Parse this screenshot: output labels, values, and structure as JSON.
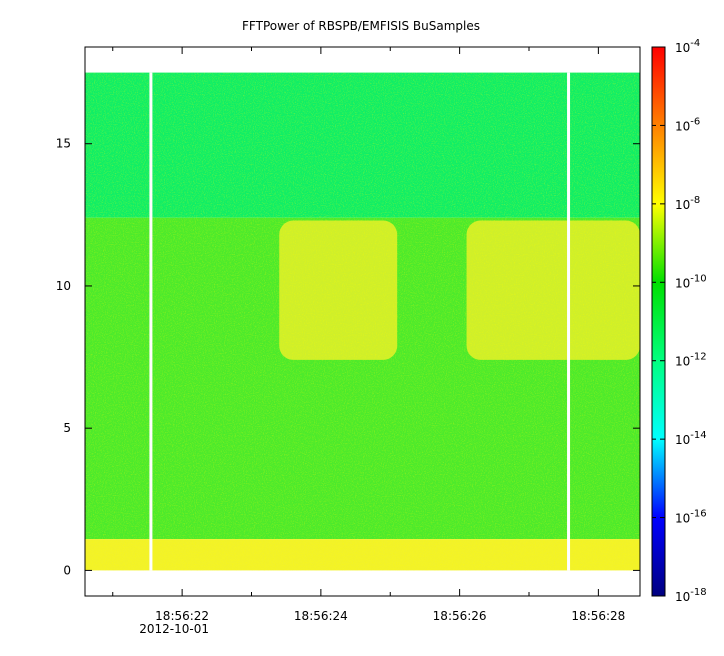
{
  "chart_data": {
    "type": "heatmap",
    "title": "FFTPower of RBSPB/EMFISIS  BuSamples",
    "xlabel": "",
    "ylabel": "",
    "x_ticks": [
      {
        "label": "18:56:22",
        "sublabel": "2012-10-01",
        "t": 22
      },
      {
        "label": "18:56:24",
        "t": 24
      },
      {
        "label": "18:56:26",
        "t": 26
      },
      {
        "label": "18:56:28",
        "t": 28
      }
    ],
    "x_minor_ticks": [
      21,
      23,
      25,
      27
    ],
    "xlim": [
      20.6,
      28.6
    ],
    "y_ticks": [
      0,
      5,
      10,
      15
    ],
    "ylim": [
      -0.9,
      18.4
    ],
    "data_ymax": 17.5,
    "gaps_t": [
      21.55,
      27.57
    ],
    "regions": [
      {
        "from": 12.4,
        "to": 17.5,
        "level": "low"
      },
      {
        "from": 1.1,
        "to": 12.4,
        "level": "mid"
      },
      {
        "from": 0.0,
        "to": 1.1,
        "level": "high"
      }
    ],
    "enhancements": [
      {
        "t_from": 23.4,
        "t_to": 25.1,
        "y_from": 7.4,
        "y_to": 12.3
      },
      {
        "t_from": 26.1,
        "t_to": 28.6,
        "y_from": 7.4,
        "y_to": 12.3
      }
    ],
    "colorbar": {
      "scale": "log",
      "range": [
        1e-18,
        0.0001
      ],
      "ticks": [
        {
          "base": "10",
          "exp": "-4"
        },
        {
          "base": "10",
          "exp": "-6"
        },
        {
          "base": "10",
          "exp": "-8"
        },
        {
          "base": "10",
          "exp": "-10"
        },
        {
          "base": "10",
          "exp": "-12"
        },
        {
          "base": "10",
          "exp": "-14"
        },
        {
          "base": "10",
          "exp": "-16"
        },
        {
          "base": "10",
          "exp": "-18"
        }
      ],
      "colors": [
        "#000080",
        "#0000ff",
        "#00ffff",
        "#00ff80",
        "#00e000",
        "#ffff00",
        "#ff8000",
        "#ff0000"
      ]
    }
  }
}
